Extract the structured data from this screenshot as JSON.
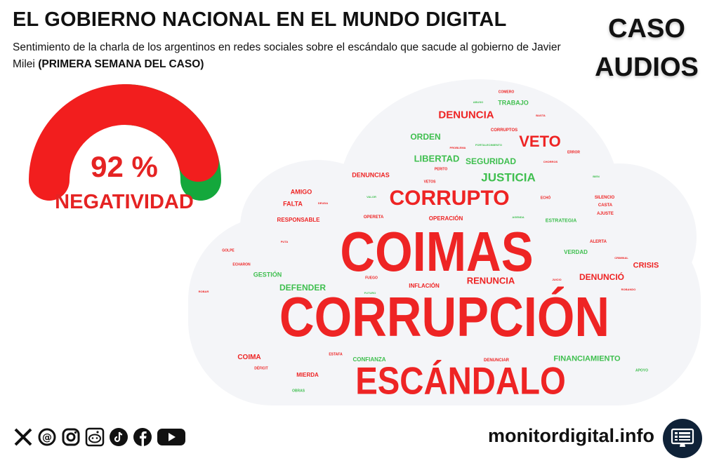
{
  "header": {
    "title": "EL GOBIERNO NACIONAL EN EL MUNDO DIGITAL",
    "subtitle_plain": "Sentimiento de la charla de los argentinos en redes sociales sobre el escándalo que sacude al gobierno de Javier Milei",
    "subtitle_bold": "(PRIMERA SEMANA DEL CASO)"
  },
  "case_label": {
    "line1": "CASO",
    "line2": "AUDIOS"
  },
  "gauge": {
    "percent_text": "92 %",
    "label": "NEGATIVIDAD",
    "negative_fraction": 0.92,
    "negative_color": "#f21e1e",
    "positive_color": "#14a83c"
  },
  "wordcloud": {
    "colors": {
      "negative": "#ee2424",
      "positive": "#3fbf4f",
      "cloud": "#f4f5f8"
    },
    "words": [
      {
        "text": "CORRUPCIÓN",
        "sentiment": "negative"
      },
      {
        "text": "COIMAS",
        "sentiment": "negative"
      },
      {
        "text": "ESCÁNDALO",
        "sentiment": "negative"
      },
      {
        "text": "CORRUPTO",
        "sentiment": "negative"
      },
      {
        "text": "VETO",
        "sentiment": "negative"
      },
      {
        "text": "DENUNCIA",
        "sentiment": "negative"
      },
      {
        "text": "JUSTICIA",
        "sentiment": "positive"
      },
      {
        "text": "LIBERTAD",
        "sentiment": "positive"
      },
      {
        "text": "SEGURIDAD",
        "sentiment": "positive"
      },
      {
        "text": "ORDEN",
        "sentiment": "positive"
      },
      {
        "text": "TRABAJO",
        "sentiment": "positive"
      },
      {
        "text": "RENUNCIA",
        "sentiment": "negative"
      },
      {
        "text": "DENUNCIÓ",
        "sentiment": "negative"
      },
      {
        "text": "CRISIS",
        "sentiment": "negative"
      },
      {
        "text": "DEFENDER",
        "sentiment": "positive"
      },
      {
        "text": "GESTIÓN",
        "sentiment": "positive"
      },
      {
        "text": "FINANCIAMIENTO",
        "sentiment": "positive"
      },
      {
        "text": "CONFIANZA",
        "sentiment": "positive"
      },
      {
        "text": "COIMA",
        "sentiment": "negative"
      },
      {
        "text": "MIERDA",
        "sentiment": "negative"
      },
      {
        "text": "DENUNCIAS",
        "sentiment": "negative"
      },
      {
        "text": "AMIGO",
        "sentiment": "negative"
      },
      {
        "text": "FALTA",
        "sentiment": "negative"
      },
      {
        "text": "RESPONSABLE",
        "sentiment": "negative"
      },
      {
        "text": "OPERACIÓN",
        "sentiment": "negative"
      },
      {
        "text": "INFLACIÓN",
        "sentiment": "negative"
      },
      {
        "text": "VERDAD",
        "sentiment": "positive"
      },
      {
        "text": "ESTRATEGIA",
        "sentiment": "positive"
      },
      {
        "text": "ALERTA",
        "sentiment": "negative"
      },
      {
        "text": "DENUNCIAR",
        "sentiment": "negative"
      },
      {
        "text": "SILENCIO",
        "sentiment": "negative"
      },
      {
        "text": "CASTA",
        "sentiment": "negative"
      },
      {
        "text": "AJUSTE",
        "sentiment": "negative"
      },
      {
        "text": "CORRUPTOS",
        "sentiment": "negative"
      },
      {
        "text": "COMERO",
        "sentiment": "negative"
      },
      {
        "text": "ABUSO",
        "sentiment": "positive"
      },
      {
        "text": "BASTA",
        "sentiment": "negative"
      },
      {
        "text": "PROBLEMA",
        "sentiment": "negative"
      },
      {
        "text": "FORTALECIMIENTO",
        "sentiment": "positive"
      },
      {
        "text": "ERROR",
        "sentiment": "negative"
      },
      {
        "text": "CHORROS",
        "sentiment": "negative"
      },
      {
        "text": "PERITO",
        "sentiment": "negative"
      },
      {
        "text": "VETOS",
        "sentiment": "negative"
      },
      {
        "text": "DEUDA",
        "sentiment": "negative"
      },
      {
        "text": "VALOR",
        "sentiment": "positive"
      },
      {
        "text": "ECHÓ",
        "sentiment": "negative"
      },
      {
        "text": "OPERETA",
        "sentiment": "negative"
      },
      {
        "text": "AGENDA",
        "sentiment": "positive"
      },
      {
        "text": "GOLPE",
        "sentiment": "negative"
      },
      {
        "text": "ECHARON",
        "sentiment": "negative"
      },
      {
        "text": "PUTA",
        "sentiment": "negative"
      },
      {
        "text": "FUEGO",
        "sentiment": "negative"
      },
      {
        "text": "FUTURO",
        "sentiment": "positive"
      },
      {
        "text": "JUICIO",
        "sentiment": "negative"
      },
      {
        "text": "ROBANDO",
        "sentiment": "negative"
      },
      {
        "text": "ROBAR",
        "sentiment": "negative"
      },
      {
        "text": "CRIMINAL",
        "sentiment": "negative"
      },
      {
        "text": "DÉFICIT",
        "sentiment": "negative"
      },
      {
        "text": "ESTAFA",
        "sentiment": "negative"
      },
      {
        "text": "APOYO",
        "sentiment": "positive"
      },
      {
        "text": "OBRAS",
        "sentiment": "positive"
      },
      {
        "text": "BIEN",
        "sentiment": "positive"
      }
    ]
  },
  "footer": {
    "social_icons": [
      "x-icon",
      "threads-icon",
      "instagram-icon",
      "reddit-icon",
      "tiktok-icon",
      "facebook-icon",
      "youtube-icon"
    ],
    "site": "monitordigital.info",
    "badge_icon": "monitor-icon"
  }
}
